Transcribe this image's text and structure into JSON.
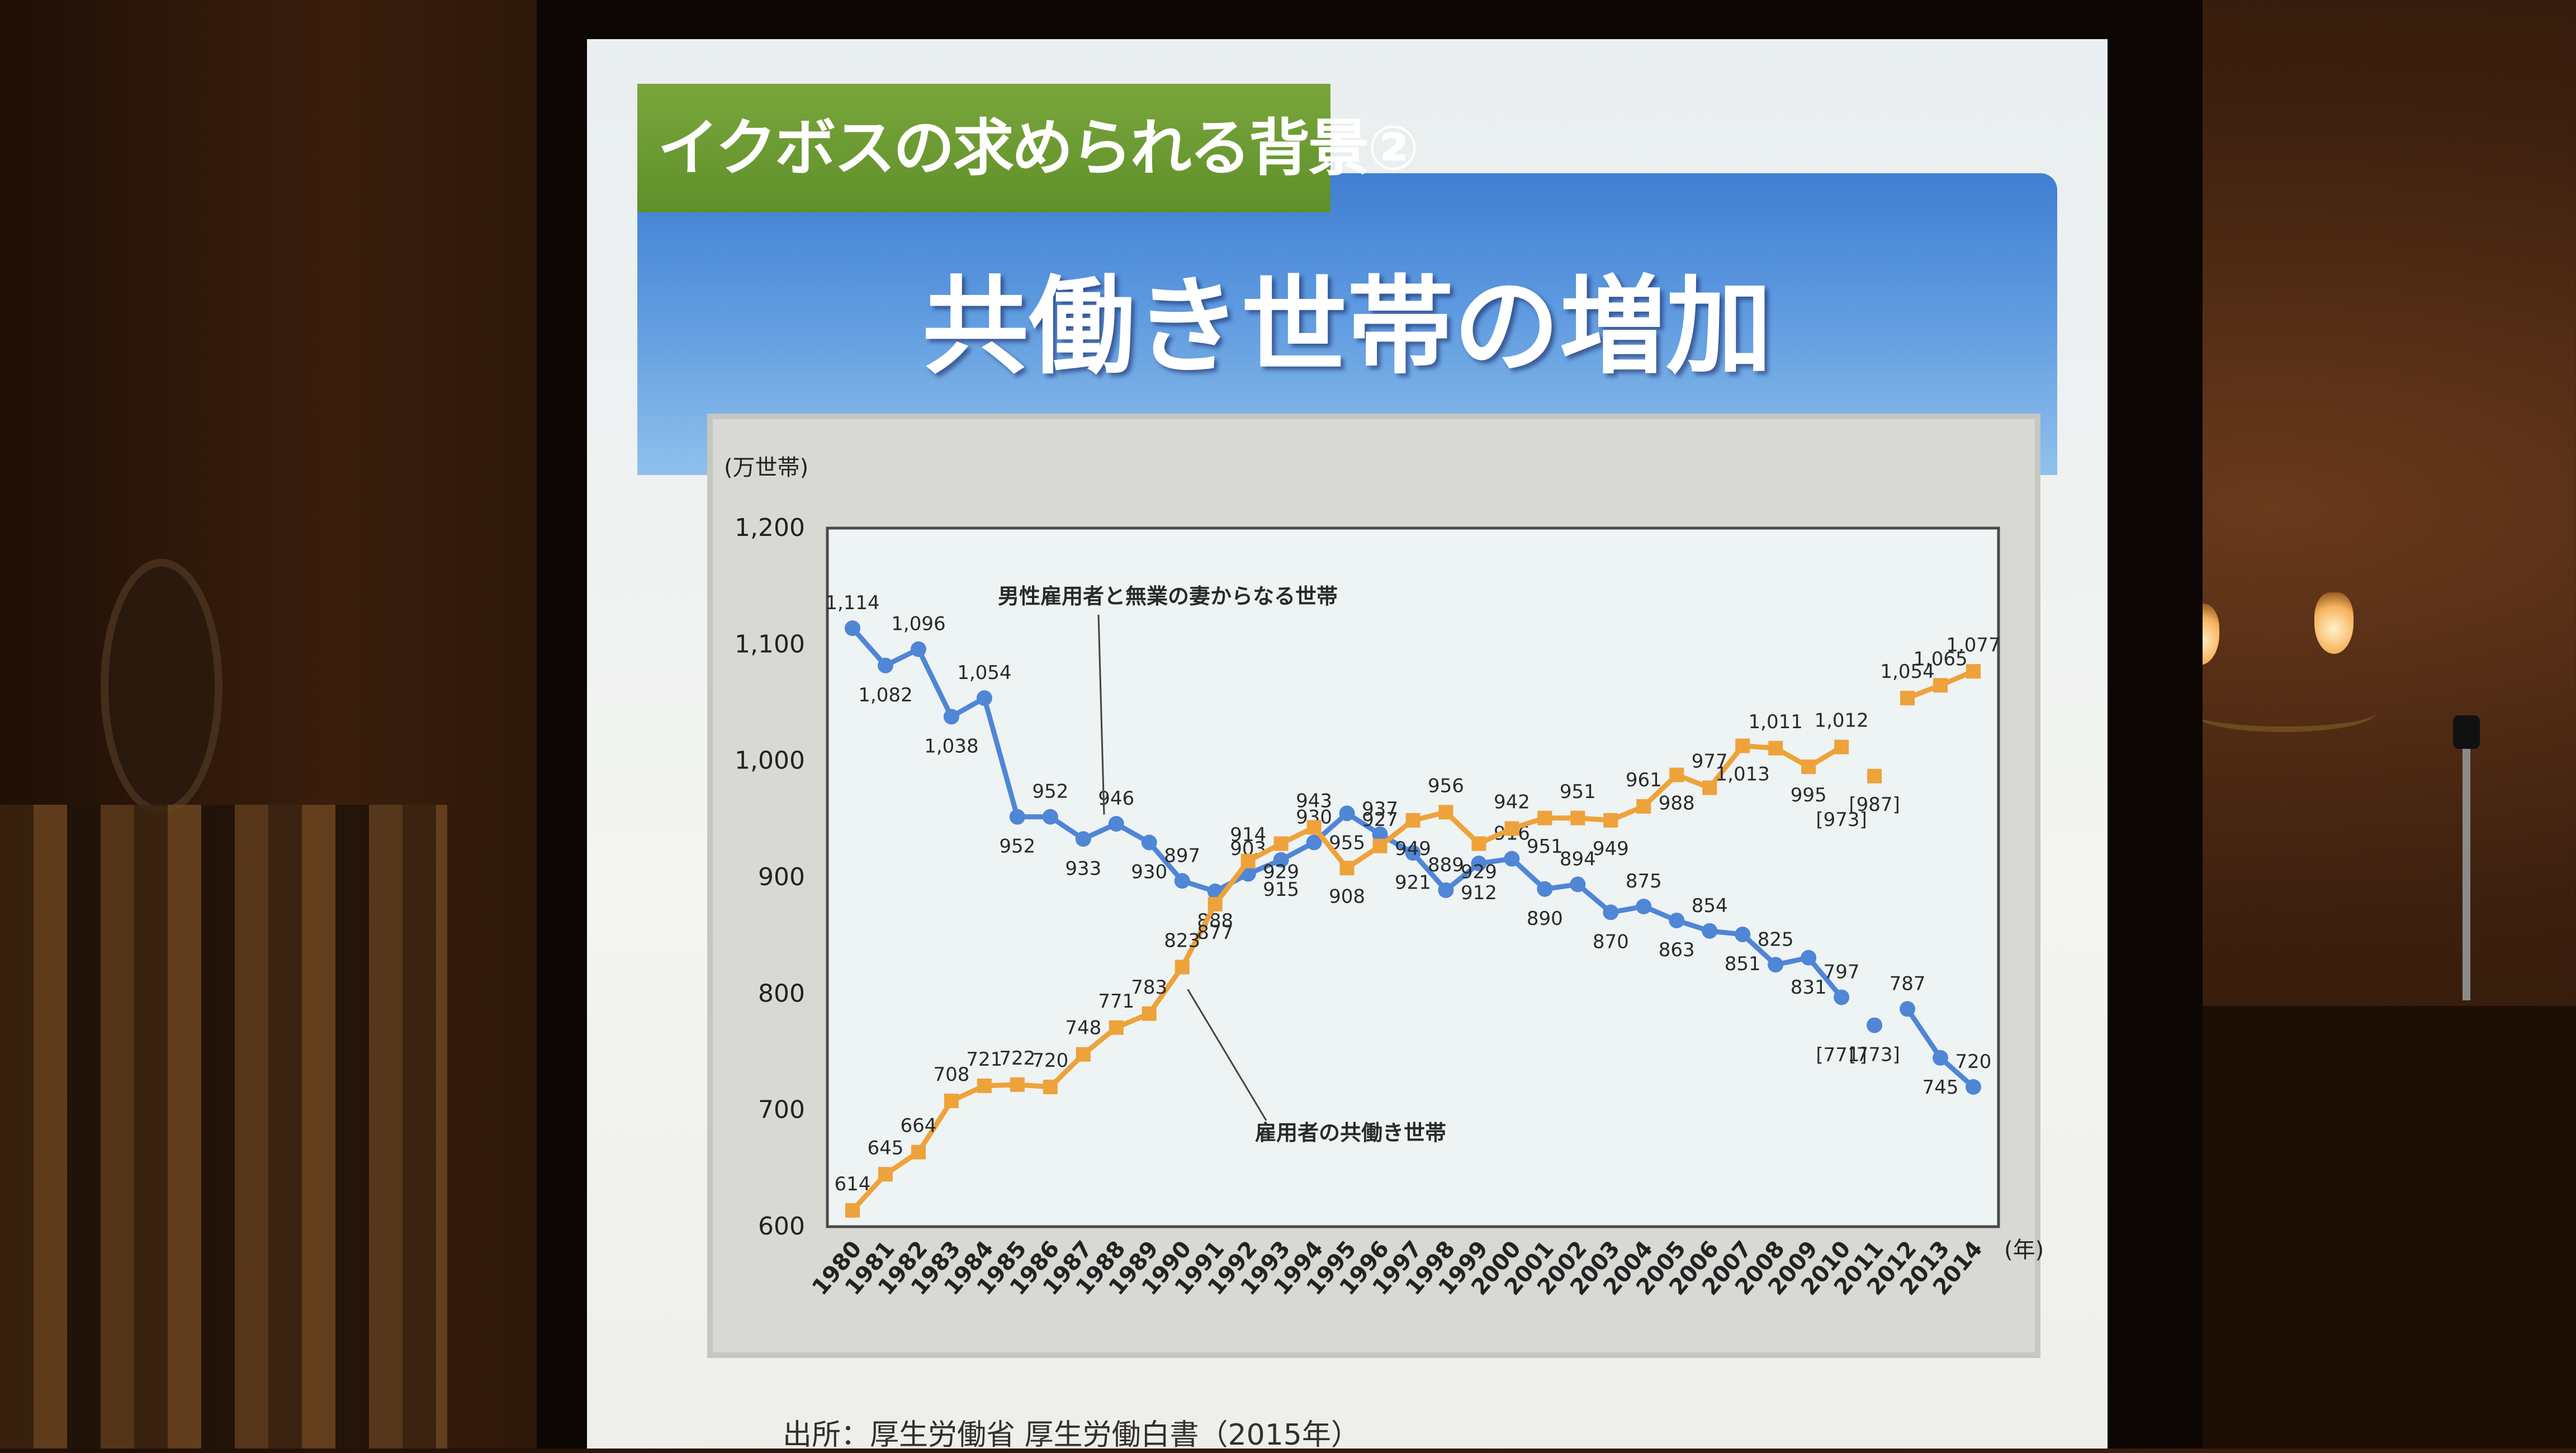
{
  "slide": {
    "section_tag": "イクボスの求められる背景②",
    "title": "共働き世帯の増加",
    "source": "出所：厚生労働省 厚生労働白書（2015年）"
  },
  "colors": {
    "single_income_series": "#4f86d6",
    "dual_income_series": "#eea23a",
    "header_blue": "#4a8ad8",
    "tag_green": "#6a9a30"
  },
  "chart_data": {
    "type": "line",
    "unit_label": "(万世帯)",
    "x_unit_label": "(年)",
    "ylim": [
      600,
      1200
    ],
    "yticks": [
      "600",
      "700",
      "800",
      "900",
      "1,000",
      "1,100",
      "1,200"
    ],
    "ytick_values": [
      600,
      700,
      800,
      900,
      1000,
      1100,
      1200
    ],
    "x": [
      "1980",
      "1981",
      "1982",
      "1983",
      "1984",
      "1985",
      "1986",
      "1987",
      "1988",
      "1989",
      "1990",
      "1991",
      "1992",
      "1993",
      "1994",
      "1995",
      "1996",
      "1997",
      "1998",
      "1999",
      "2000",
      "2001",
      "2002",
      "2003",
      "2004",
      "2005",
      "2006",
      "2007",
      "2008",
      "2009",
      "2010",
      "2011",
      "2012",
      "2013",
      "2014"
    ],
    "series": [
      {
        "name": "男性雇用者と無業の妻からなる世帯",
        "values": [
          1114,
          1082,
          1096,
          1038,
          1054,
          952,
          952,
          933,
          946,
          930,
          897,
          888,
          903,
          915,
          930,
          955,
          937,
          921,
          889,
          912,
          916,
          890,
          894,
          870,
          875,
          863,
          854,
          851,
          825,
          831,
          797,
          773,
          787,
          745,
          720
        ],
        "labels": [
          "1,114",
          "1,082",
          "1,096",
          "1,038",
          "1,054",
          "952",
          "952",
          "933",
          "946",
          "930",
          "897",
          "888",
          "903",
          "915",
          "930",
          "955",
          "937",
          "921",
          "889",
          "912",
          "916",
          "890",
          "894",
          "870",
          "875",
          "863",
          "854",
          "851",
          "825",
          "831",
          "797",
          "[773]",
          "787",
          "745",
          "720"
        ]
      },
      {
        "name": "雇用者の共働き世帯",
        "values": [
          614,
          645,
          664,
          708,
          721,
          722,
          720,
          748,
          771,
          783,
          823,
          877,
          914,
          929,
          943,
          908,
          927,
          949,
          956,
          929,
          942,
          951,
          951,
          949,
          961,
          988,
          977,
          1013,
          1011,
          995,
          1012,
          987,
          1054,
          1065,
          1077
        ],
        "labels": [
          "614",
          "645",
          "664",
          "708",
          "721",
          "722",
          "720",
          "748",
          "771",
          "783",
          "823",
          "877",
          "914",
          "929",
          "943",
          "908",
          "927",
          "949",
          "956",
          "929",
          "942",
          "951",
          "951",
          "949",
          "961",
          "988",
          "977",
          "1,013",
          "1,011",
          "995",
          "1,012",
          "[987]",
          "1,054",
          "1,065",
          "1,077"
        ]
      }
    ],
    "notes": [
      "[973]",
      "[771]"
    ],
    "grid": false,
    "legend": "inline annotations with arrows"
  }
}
